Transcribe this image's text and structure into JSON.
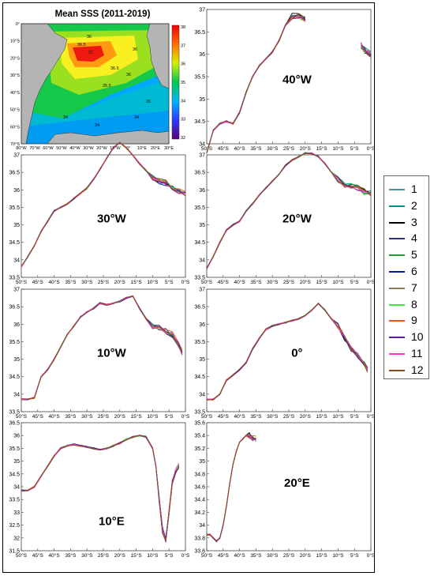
{
  "map": {
    "title": "Mean SSS (2011-2019)",
    "lat_ticks": [
      "0°",
      "10°S",
      "20°S",
      "30°S",
      "40°S",
      "50°S",
      "60°S",
      "70°S"
    ],
    "lon_ticks": [
      "80°W",
      "70°W",
      "60°W",
      "50°W",
      "40°W",
      "30°W",
      "20°W",
      "10°W",
      "0°",
      "10°E",
      "20°E",
      "30°E"
    ],
    "colorbar_ticks": [
      "38",
      "37",
      "36",
      "35",
      "34",
      "33",
      "32"
    ],
    "contour_labels": [
      "36",
      "36.5",
      "37",
      "36.5",
      "36",
      "35.5",
      "36",
      "34",
      "34",
      "34",
      "35"
    ],
    "colors": {
      "land": "#b4b4b4",
      "ocean_low": "#00a8ff",
      "ocean_mid": "#00c850",
      "ocean_high": "#ffff00",
      "ocean_max": "#ff0000"
    }
  },
  "chart_data": [
    {
      "type": "line",
      "label": "40°W",
      "ylim": [
        34,
        37
      ],
      "yticks": [
        "37",
        "36.5",
        "36",
        "35.5",
        "35",
        "34.5",
        "34"
      ],
      "x": [
        -50,
        -48,
        -46,
        -44,
        -42,
        -40,
        -38,
        -36,
        -34,
        -32,
        -30,
        -28,
        -26,
        -24,
        -22,
        -20
      ],
      "values": [
        33.8,
        34.3,
        34.45,
        34.5,
        34.45,
        34.7,
        35.15,
        35.5,
        35.75,
        35.9,
        36.05,
        36.3,
        36.65,
        36.85,
        36.85,
        36.8
      ],
      "x2": [
        -3,
        -2,
        -1,
        0
      ],
      "values2": [
        36.2,
        36.1,
        36.05,
        36.0
      ]
    },
    {
      "type": "line",
      "label": "30°W",
      "ylim": [
        33.5,
        37
      ],
      "yticks": [
        "37",
        "36.5",
        "36",
        "35.5",
        "35",
        "34.5",
        "34",
        "33.5"
      ],
      "x": [
        -50,
        -48,
        -46,
        -44,
        -42,
        -40,
        -38,
        -36,
        -34,
        -32,
        -30,
        -28,
        -26,
        -24,
        -22,
        -20,
        -18,
        -16,
        -14,
        -12,
        -10,
        -8,
        -6,
        -4,
        -2,
        0
      ],
      "values": [
        33.8,
        34.1,
        34.4,
        34.8,
        35.1,
        35.4,
        35.5,
        35.6,
        35.75,
        35.9,
        36.05,
        36.3,
        36.6,
        36.9,
        37.2,
        37.35,
        37.2,
        37.0,
        36.75,
        36.55,
        36.35,
        36.25,
        36.2,
        36.05,
        35.95,
        35.9
      ]
    },
    {
      "type": "line",
      "label": "20°W",
      "ylim": [
        33.5,
        37
      ],
      "yticks": [
        "37",
        "36.5",
        "36",
        "35.5",
        "35",
        "34.5",
        "34",
        "33.5"
      ],
      "x": [
        -50,
        -48,
        -46,
        -44,
        -42,
        -40,
        -38,
        -36,
        -34,
        -32,
        -30,
        -28,
        -26,
        -24,
        -22,
        -20,
        -18,
        -16,
        -14,
        -12,
        -10,
        -8,
        -6,
        -4,
        -2,
        0
      ],
      "values": [
        33.75,
        34.1,
        34.5,
        34.85,
        35.0,
        35.1,
        35.4,
        35.6,
        35.85,
        36.05,
        36.25,
        36.45,
        36.7,
        36.85,
        36.95,
        37.05,
        37.05,
        36.95,
        36.75,
        36.5,
        36.3,
        36.15,
        36.1,
        36.05,
        35.95,
        35.9
      ]
    },
    {
      "type": "line",
      "label": "10°W",
      "ylim": [
        33.5,
        37
      ],
      "yticks": [
        "37",
        "36.5",
        "36",
        "35.5",
        "35",
        "34.5",
        "34",
        "33.5"
      ],
      "x": [
        -50,
        -48,
        -46,
        -44,
        -42,
        -40,
        -38,
        -36,
        -34,
        -32,
        -30,
        -28,
        -26,
        -24,
        -22,
        -20,
        -18,
        -16,
        -14,
        -12,
        -10,
        -8,
        -6,
        -4,
        -2,
        -1
      ],
      "values": [
        33.85,
        33.85,
        33.9,
        34.5,
        34.7,
        35.0,
        35.35,
        35.7,
        35.95,
        36.2,
        36.35,
        36.45,
        36.6,
        36.55,
        36.6,
        36.65,
        36.75,
        36.8,
        36.45,
        36.15,
        35.95,
        35.9,
        35.8,
        35.7,
        35.4,
        35.2
      ]
    },
    {
      "type": "line",
      "label": "0°",
      "ylim": [
        33.5,
        37
      ],
      "yticks": [
        "37",
        "36.5",
        "36",
        "35.5",
        "35",
        "34.5",
        "34",
        "33.5"
      ],
      "x": [
        -50,
        -48,
        -46,
        -44,
        -42,
        -40,
        -38,
        -36,
        -34,
        -32,
        -30,
        -28,
        -26,
        -24,
        -22,
        -20,
        -18,
        -16,
        -14,
        -12,
        -10,
        -8,
        -6,
        -4,
        -2,
        -1
      ],
      "values": [
        33.85,
        33.85,
        34.0,
        34.4,
        34.55,
        34.7,
        34.9,
        35.3,
        35.6,
        35.85,
        35.95,
        36.0,
        36.05,
        36.1,
        36.15,
        36.25,
        36.4,
        36.6,
        36.4,
        36.15,
        35.95,
        35.6,
        35.3,
        35.1,
        34.85,
        34.7
      ]
    },
    {
      "type": "line",
      "label": "10°E",
      "ylim": [
        31.5,
        36.5
      ],
      "yticks": [
        "36.5",
        "36",
        "35.5",
        "35",
        "34.5",
        "34",
        "33.5",
        "33",
        "32.5",
        "32",
        "31.5"
      ],
      "x": [
        -50,
        -48,
        -46,
        -44,
        -42,
        -40,
        -38,
        -36,
        -34,
        -32,
        -30,
        -28,
        -26,
        -24,
        -22,
        -20,
        -18,
        -16,
        -14,
        -12,
        -10,
        -9,
        -8,
        -7,
        -6,
        -5,
        -4,
        -3,
        -2
      ],
      "values": [
        33.85,
        33.85,
        34.0,
        34.4,
        34.8,
        35.2,
        35.5,
        35.6,
        35.65,
        35.6,
        35.55,
        35.5,
        35.45,
        35.5,
        35.6,
        35.7,
        35.85,
        35.95,
        36.0,
        35.95,
        35.5,
        34.8,
        33.5,
        32.3,
        31.9,
        33.0,
        34.2,
        34.6,
        34.8
      ]
    },
    {
      "type": "line",
      "label": "20°E",
      "ylim": [
        33.6,
        35.6
      ],
      "yticks": [
        "35.6",
        "35.4",
        "35.2",
        "35",
        "34.8",
        "34.6",
        "34.4",
        "34.2",
        "34",
        "33.8",
        "33.6"
      ],
      "x": [
        -50,
        -49,
        -48,
        -47,
        -46,
        -45,
        -44,
        -43,
        -42,
        -41,
        -40,
        -39,
        -38,
        -37,
        -36,
        -35
      ],
      "values": [
        33.85,
        33.85,
        33.8,
        33.75,
        33.8,
        34.0,
        34.3,
        34.65,
        34.95,
        35.15,
        35.3,
        35.35,
        35.4,
        35.4,
        35.35,
        35.35
      ]
    }
  ],
  "xticks": [
    "50°S",
    "45°S",
    "40°S",
    "35°S",
    "30°S",
    "25°S",
    "20°S",
    "15°S",
    "10°S",
    "5°S",
    "0°S"
  ],
  "legend": [
    {
      "label": "1",
      "color": "#4a90a4"
    },
    {
      "label": "2",
      "color": "#0b8e8c"
    },
    {
      "label": "3",
      "color": "#000000"
    },
    {
      "label": "4",
      "color": "#2b2f8a"
    },
    {
      "label": "5",
      "color": "#1f9a3a"
    },
    {
      "label": "6",
      "color": "#001a9b"
    },
    {
      "label": "7",
      "color": "#8c7a5a"
    },
    {
      "label": "8",
      "color": "#33ee33"
    },
    {
      "label": "9",
      "color": "#ff4d1a"
    },
    {
      "label": "10",
      "color": "#5a1aa8"
    },
    {
      "label": "11",
      "color": "#ff33cc"
    },
    {
      "label": "12",
      "color": "#8a4a1a"
    }
  ]
}
